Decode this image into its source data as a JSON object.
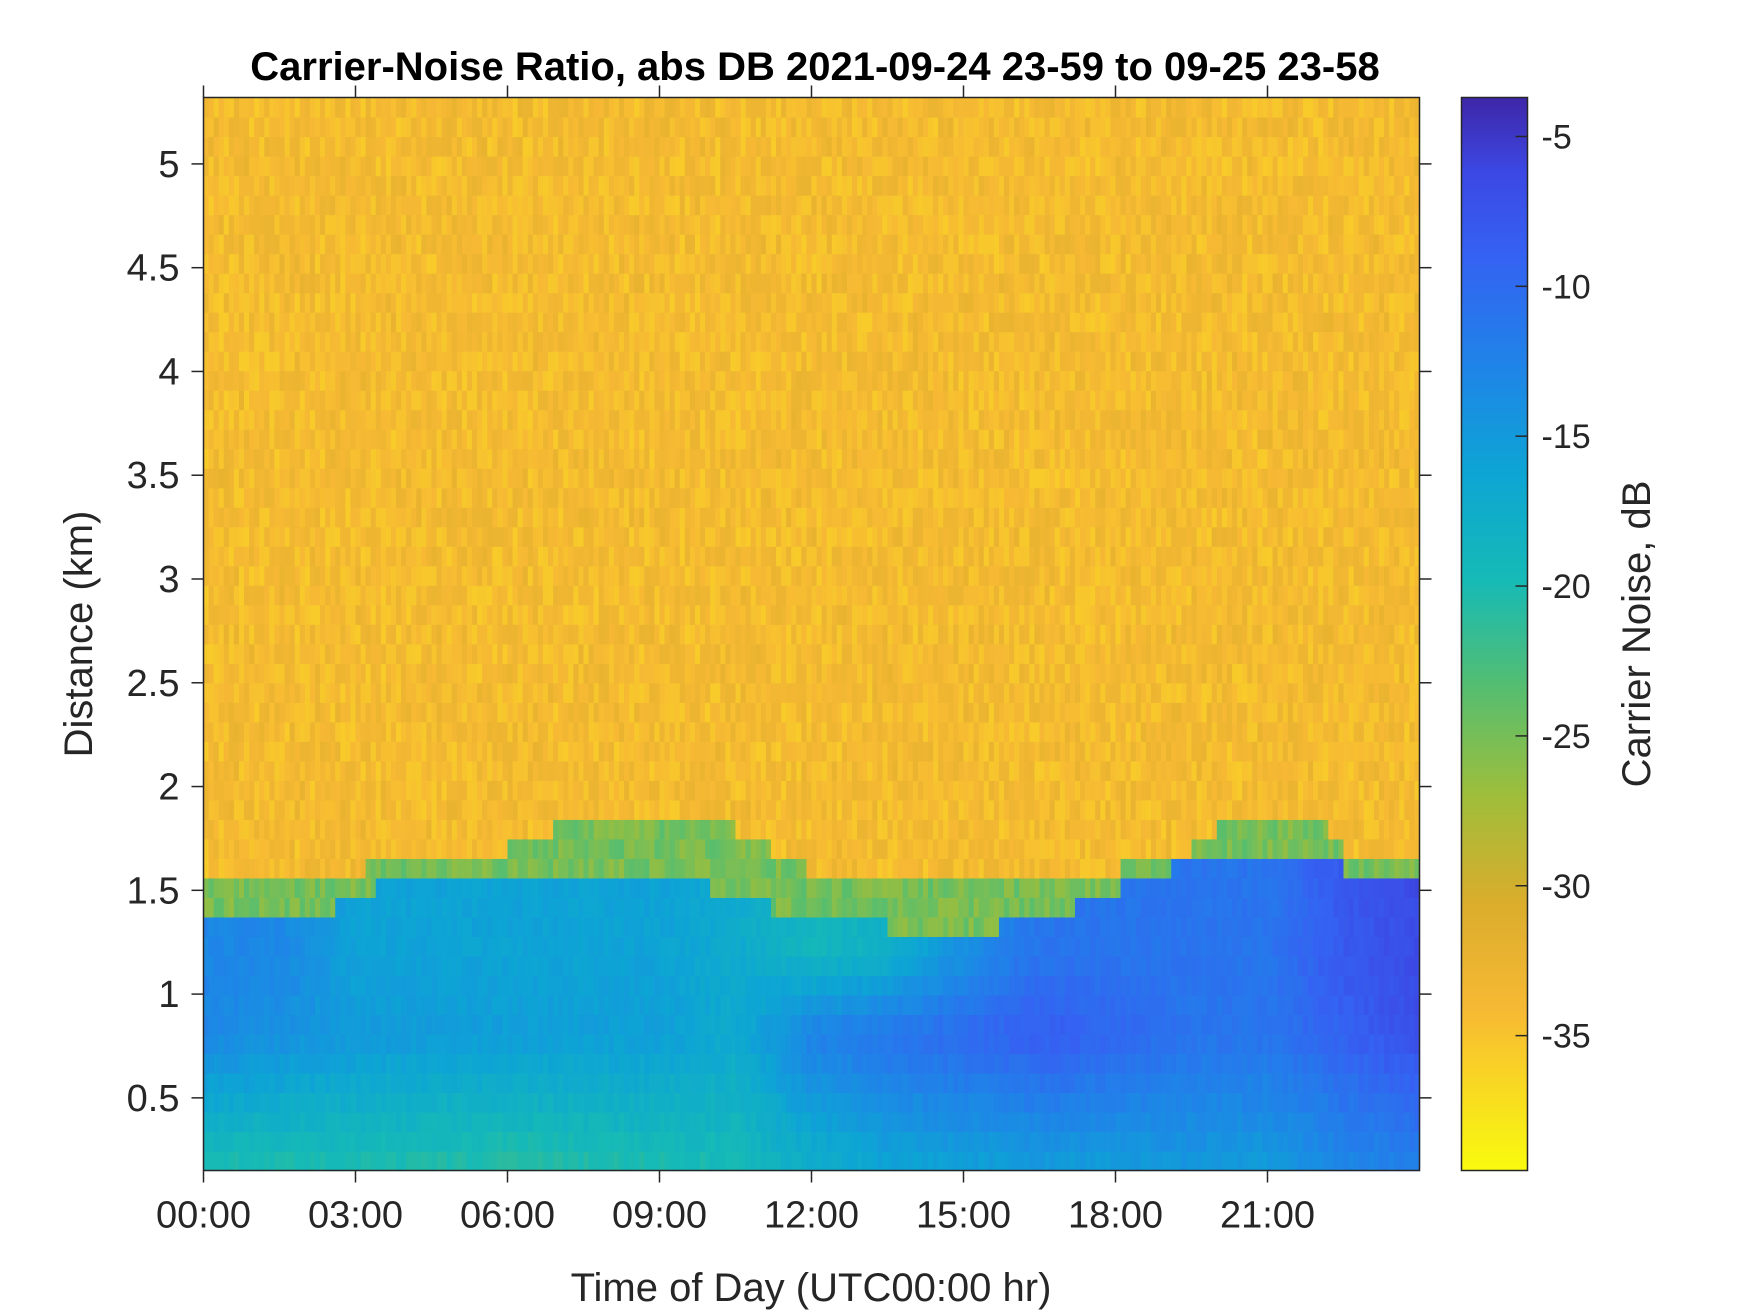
{
  "chart_data": {
    "type": "heatmap",
    "title": "Carrier-Noise Ratio, abs DB 2021-09-24 23-59 to 09-25 23-58",
    "xlabel": "Time of Day (UTC00:00 hr)",
    "ylabel": "Distance (km)",
    "colorbar_label": "Carrier Noise, dB",
    "xlim_hours": [
      0,
      24
    ],
    "ylim_km": [
      0.15,
      5.32
    ],
    "clim_db": [
      -39.5,
      -3.7
    ],
    "colormap": "parula (reversed: yellow = low, dark blue = high)",
    "x_ticks": [
      {
        "hours": 0,
        "label": "00:00"
      },
      {
        "hours": 3,
        "label": "03:00"
      },
      {
        "hours": 6,
        "label": "06:00"
      },
      {
        "hours": 9,
        "label": "09:00"
      },
      {
        "hours": 12,
        "label": "12:00"
      },
      {
        "hours": 15,
        "label": "15:00"
      },
      {
        "hours": 18,
        "label": "18:00"
      },
      {
        "hours": 21,
        "label": "21:00"
      }
    ],
    "y_ticks": [
      {
        "km": 0.5,
        "label": "0.5"
      },
      {
        "km": 1,
        "label": "1"
      },
      {
        "km": 1.5,
        "label": "1.5"
      },
      {
        "km": 2,
        "label": "2"
      },
      {
        "km": 2.5,
        "label": "2.5"
      },
      {
        "km": 3,
        "label": "3"
      },
      {
        "km": 3.5,
        "label": "3.5"
      },
      {
        "km": 4,
        "label": "4"
      },
      {
        "km": 4.5,
        "label": "4.5"
      },
      {
        "km": 5,
        "label": "5"
      }
    ],
    "colorbar_ticks": [
      {
        "db": -5,
        "label": "-5"
      },
      {
        "db": -10,
        "label": "-10"
      },
      {
        "db": -15,
        "label": "-15"
      },
      {
        "db": -20,
        "label": "-20"
      },
      {
        "db": -25,
        "label": "-25"
      },
      {
        "db": -30,
        "label": "-30"
      },
      {
        "db": -35,
        "label": "-35"
      }
    ],
    "background_level_db": -34,
    "signal_top_km": {
      "hours": [
        0,
        2.5,
        3,
        6,
        7,
        9,
        10.5,
        12,
        15,
        17,
        18,
        19.5,
        20,
        21,
        22,
        22.5,
        24
      ],
      "km": [
        1.6,
        1.6,
        1.6,
        1.7,
        1.8,
        1.8,
        1.8,
        1.6,
        1.6,
        1.6,
        1.6,
        1.7,
        1.8,
        1.8,
        1.85,
        1.7,
        1.7
      ]
    },
    "signal_core_top_km": {
      "hours": [
        0,
        2.5,
        3,
        6,
        9,
        12,
        15,
        16.5,
        18,
        20,
        22,
        22.5,
        24
      ],
      "km": [
        1.4,
        1.4,
        1.5,
        1.6,
        1.6,
        1.35,
        1.3,
        1.35,
        1.5,
        1.7,
        1.7,
        1.6,
        1.6
      ]
    },
    "signal_profile_db": {
      "hours": [
        0,
        1.5,
        3,
        6,
        9,
        10.5,
        12,
        13.5,
        15,
        16.5,
        18,
        19.5,
        21,
        22.5,
        24
      ],
      "near_surface_0_2km": [
        -20,
        -20,
        -20,
        -20.5,
        -20,
        -19.5,
        -17.5,
        -16,
        -15.5,
        -15,
        -15,
        -14.5,
        -15,
        -13,
        -12
      ],
      "mid_0_8km": [
        -13,
        -14,
        -15,
        -15.5,
        -15.5,
        -17,
        -12.5,
        -11,
        -10,
        -8.5,
        -9.5,
        -11,
        -11,
        -9,
        -7
      ],
      "upper_1_2km": [
        -13,
        -13,
        -16,
        -16,
        -16,
        -17,
        -19,
        -18,
        -14,
        -11,
        -11,
        -11,
        -11,
        -8,
        -6.5
      ]
    }
  }
}
